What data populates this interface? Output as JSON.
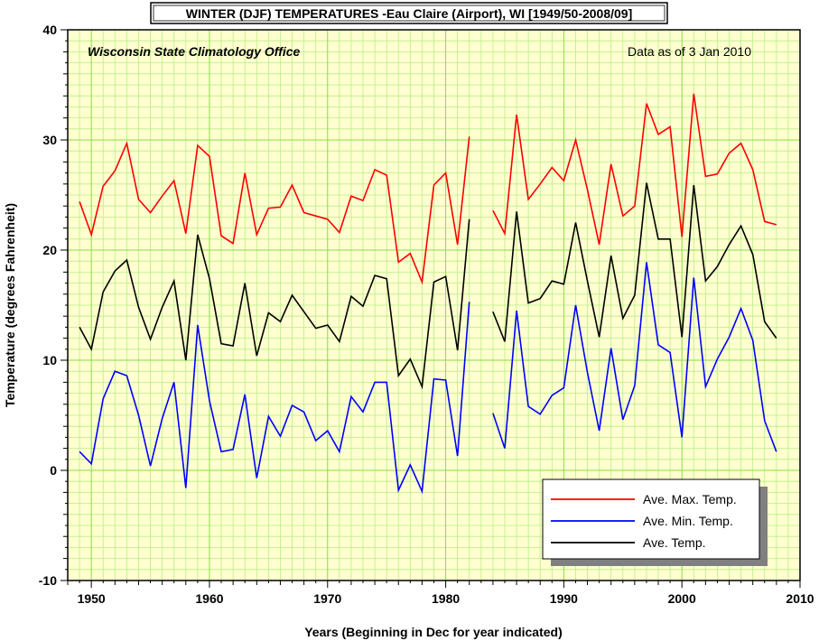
{
  "chart_data": {
    "type": "line",
    "title": "WINTER (DJF) TEMPERATURES -Eau Claire (Airport), WI [1949/50-2008/09]",
    "subtitle_left": "Wisconsin State Climatology Office",
    "subtitle_right": "Data as of 3 Jan 2010",
    "xlabel": "Years (Beginning in Dec for year indicated)",
    "ylabel": "Temperature (degrees Fahrenheit)",
    "xlim": [
      1948,
      2010
    ],
    "ylim": [
      -10,
      40
    ],
    "x_ticks": [
      1950,
      1960,
      1970,
      1980,
      1990,
      2000,
      2010
    ],
    "y_ticks": [
      -10,
      0,
      10,
      20,
      30,
      40
    ],
    "grid": true,
    "legend_position": "bottom-right",
    "x": [
      1949,
      1950,
      1951,
      1952,
      1953,
      1954,
      1955,
      1956,
      1957,
      1958,
      1959,
      1960,
      1961,
      1962,
      1963,
      1964,
      1965,
      1966,
      1967,
      1968,
      1969,
      1970,
      1971,
      1972,
      1973,
      1974,
      1975,
      1976,
      1977,
      1978,
      1979,
      1980,
      1981,
      1982,
      1983,
      1984,
      1985,
      1986,
      1987,
      1988,
      1989,
      1990,
      1991,
      1992,
      1993,
      1994,
      1995,
      1996,
      1997,
      1998,
      1999,
      2000,
      2001,
      2002,
      2003,
      2004,
      2005,
      2006,
      2007,
      2008
    ],
    "series": [
      {
        "name": "Ave. Max. Temp.",
        "color": "#ff0000",
        "values": [
          24.4,
          21.4,
          25.8,
          27.2,
          29.7,
          24.6,
          23.4,
          24.9,
          26.3,
          21.5,
          29.5,
          28.5,
          21.3,
          20.6,
          27.0,
          21.4,
          23.8,
          23.9,
          25.9,
          23.4,
          23.1,
          22.8,
          21.6,
          24.9,
          24.5,
          27.3,
          26.8,
          18.9,
          19.7,
          17.1,
          25.9,
          27.0,
          20.5,
          30.3,
          null,
          23.6,
          21.5,
          32.3,
          24.6,
          26.0,
          27.5,
          26.3,
          30.0,
          25.5,
          20.5,
          27.8,
          23.1,
          24.0,
          33.3,
          30.5,
          31.2,
          21.2,
          34.2,
          26.7,
          26.9,
          28.8,
          29.7,
          27.3,
          22.6,
          22.3
        ]
      },
      {
        "name": "Ave. Min. Temp.",
        "color": "#0000ff",
        "values": [
          1.7,
          0.6,
          6.5,
          9.0,
          8.6,
          5.0,
          0.4,
          4.7,
          8.0,
          -1.6,
          13.2,
          6.3,
          1.7,
          1.9,
          6.9,
          -0.7,
          4.9,
          3.1,
          5.9,
          5.3,
          2.7,
          3.6,
          1.7,
          6.7,
          5.3,
          8.0,
          8.0,
          -1.8,
          0.5,
          -1.9,
          8.3,
          8.2,
          1.3,
          15.3,
          null,
          5.2,
          2.0,
          14.5,
          5.8,
          5.1,
          6.8,
          7.5,
          15.0,
          8.9,
          3.6,
          11.1,
          4.6,
          7.7,
          18.9,
          11.4,
          10.7,
          3.0,
          17.5,
          7.6,
          10.1,
          12.1,
          14.7,
          11.8,
          4.5,
          1.7
        ]
      },
      {
        "name": "Ave. Temp.",
        "color": "#000000",
        "values": [
          13.0,
          11.0,
          16.2,
          18.1,
          19.1,
          14.8,
          11.9,
          14.8,
          17.2,
          10.0,
          21.4,
          17.4,
          11.5,
          11.3,
          17.0,
          10.4,
          14.3,
          13.5,
          15.9,
          14.4,
          12.9,
          13.2,
          11.7,
          15.8,
          14.9,
          17.7,
          17.4,
          8.6,
          10.1,
          7.6,
          17.1,
          17.6,
          10.9,
          22.8,
          null,
          14.4,
          11.7,
          23.5,
          15.2,
          15.6,
          17.2,
          16.9,
          22.5,
          17.2,
          12.1,
          19.5,
          13.8,
          15.9,
          26.1,
          21.0,
          21.0,
          12.1,
          25.9,
          17.2,
          18.5,
          20.5,
          22.2,
          19.6,
          13.5,
          12.0
        ]
      }
    ]
  }
}
